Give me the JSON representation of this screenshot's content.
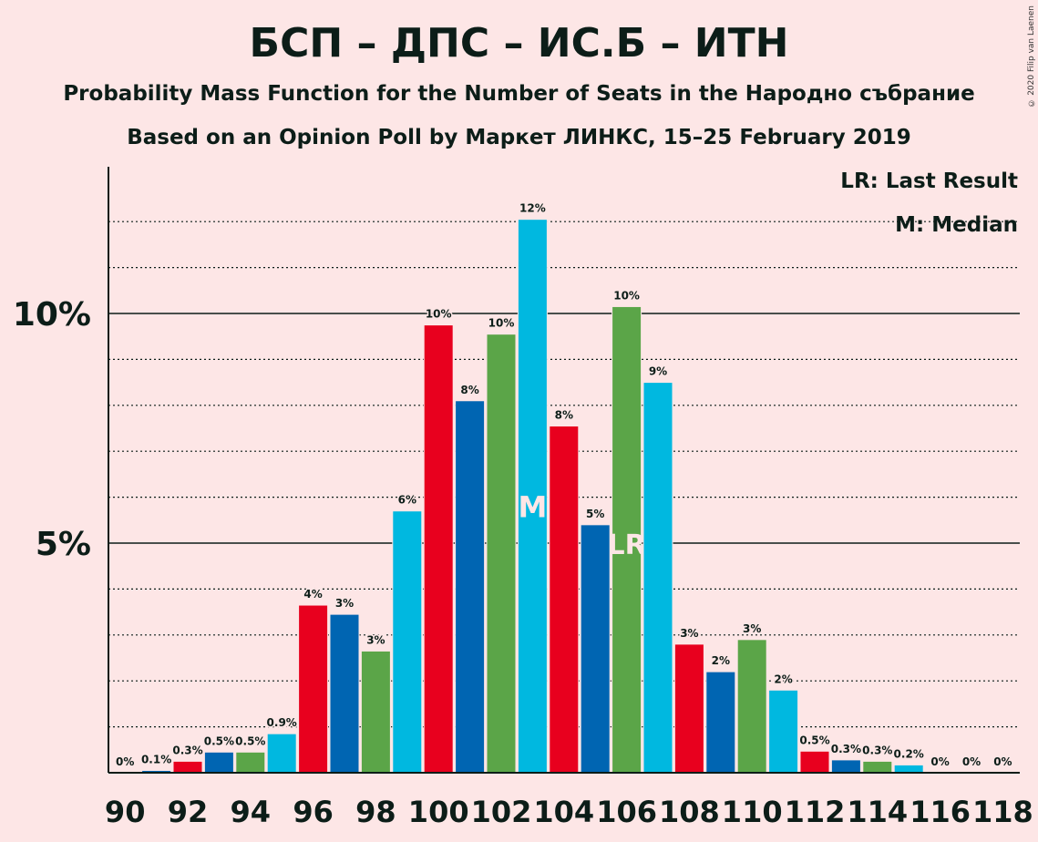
{
  "title": "БСП – ДПС – ИС.Б – ИТН",
  "subtitle1": "Probability Mass Function for the Number of Seats in the Народно събрание",
  "subtitle2": "Based on an Opinion Poll by Маркет ЛИНКС, 15–25 February 2019",
  "copyright": "© 2020 Filip van Laenen",
  "legend": {
    "last_result": "LR: Last Result",
    "median": "M: Median"
  },
  "colors": {
    "background": "#FDE6E6",
    "red": "#E8001E",
    "blue": "#0065B2",
    "green": "#5BA548",
    "cyan": "#00B8E0",
    "text": "#0C1D18"
  },
  "chart_data": {
    "type": "bar",
    "x": [
      90,
      91,
      92,
      93,
      94,
      95,
      96,
      97,
      98,
      99,
      100,
      101,
      102,
      103,
      104,
      105,
      106,
      107,
      108,
      109,
      110,
      111,
      112,
      113,
      114,
      115,
      116,
      117,
      118
    ],
    "values": [
      0,
      0.05,
      0.25,
      0.45,
      0.45,
      0.85,
      3.65,
      3.45,
      2.65,
      5.7,
      9.75,
      8.1,
      9.55,
      12.05,
      7.55,
      5.4,
      10.15,
      8.5,
      2.8,
      2.2,
      2.9,
      1.8,
      0.47,
      0.28,
      0.25,
      0.17,
      0,
      0,
      0
    ],
    "labels": [
      "0%",
      "0.1%",
      "0.3%",
      "0.5%",
      "0.5%",
      "0.9%",
      "4%",
      "3%",
      "3%",
      "6%",
      "10%",
      "8%",
      "10%",
      "12%",
      "8%",
      "5%",
      "10%",
      "9%",
      "3%",
      "2%",
      "3%",
      "2%",
      "0.5%",
      "0.3%",
      "0.3%",
      "0.2%",
      "0%",
      "0%",
      "0%"
    ],
    "bar_colors": [
      "red",
      "blue",
      "red",
      "blue",
      "green",
      "cyan",
      "red",
      "blue",
      "green",
      "cyan",
      "red",
      "blue",
      "green",
      "cyan",
      "red",
      "blue",
      "green",
      "cyan",
      "red",
      "blue",
      "green",
      "cyan",
      "red",
      "blue",
      "green",
      "cyan",
      "red",
      "blue",
      "green"
    ],
    "x_tick_labels": [
      "90",
      "92",
      "94",
      "96",
      "98",
      "100",
      "102",
      "104",
      "106",
      "108",
      "110",
      "112",
      "114",
      "116",
      "118"
    ],
    "y_tick_labels": [
      "5%",
      "10%"
    ],
    "y_ticks": [
      5,
      10
    ],
    "ylim": [
      0,
      12.5
    ],
    "minor_gridlines": [
      1,
      2,
      3,
      4,
      6,
      7,
      8,
      9,
      11,
      12
    ],
    "median_seats": 103,
    "median_marker": "M",
    "last_result_seats": 106,
    "last_result_marker": "LR"
  }
}
